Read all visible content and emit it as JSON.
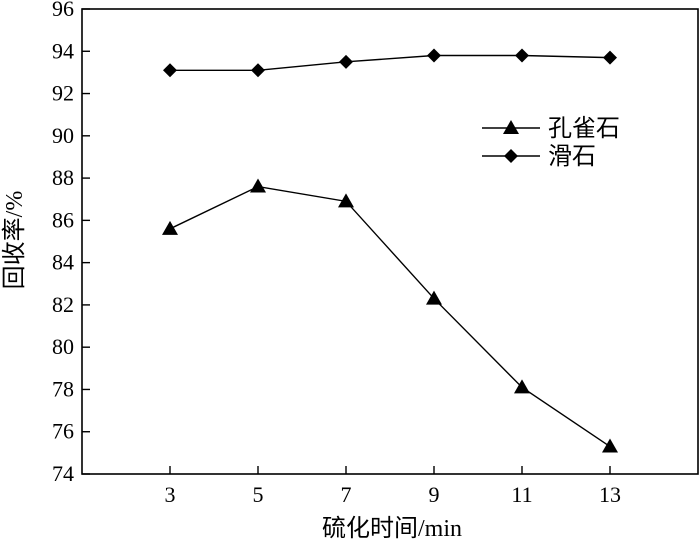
{
  "chart_data": {
    "type": "line",
    "xlabel": "硫化时间/min",
    "ylabel": "回收率/%",
    "x": [
      3,
      5,
      7,
      9,
      11,
      13
    ],
    "x_ticks": [
      "3",
      "5",
      "7",
      "9",
      "11",
      "13"
    ],
    "xlim": [
      1,
      15
    ],
    "ylim": [
      74,
      96
    ],
    "y_ticks": [
      "74",
      "76",
      "78",
      "80",
      "82",
      "84",
      "86",
      "88",
      "90",
      "92",
      "94",
      "96"
    ],
    "grid": false,
    "legend_position": "top-right",
    "series": [
      {
        "name": "孔雀石",
        "marker": "triangle",
        "values": [
          85.6,
          87.6,
          86.9,
          82.3,
          78.1,
          75.3
        ]
      },
      {
        "name": "滑石",
        "marker": "diamond",
        "values": [
          93.1,
          93.1,
          93.5,
          93.8,
          93.8,
          93.7
        ]
      }
    ]
  }
}
